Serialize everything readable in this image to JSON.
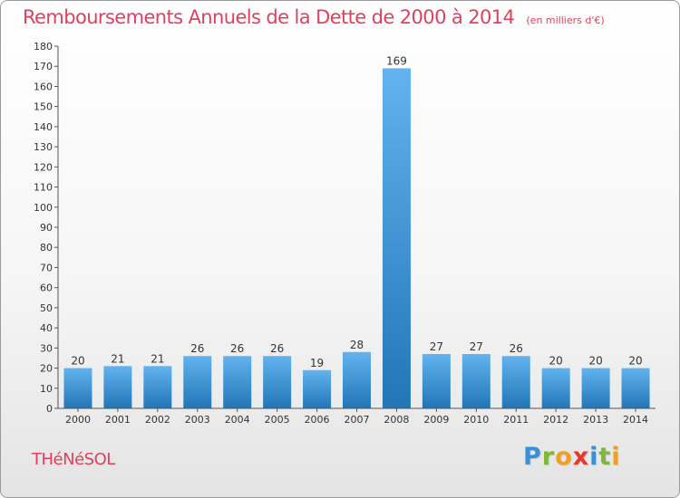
{
  "chart_data": {
    "type": "bar",
    "title": "Remboursements Annuels de la Dette de 2000 à 2014",
    "subtitle": "(en milliers d'€)",
    "xlabel": "",
    "ylabel": "",
    "categories": [
      "2000",
      "2001",
      "2002",
      "2003",
      "2004",
      "2005",
      "2006",
      "2007",
      "2008",
      "2009",
      "2010",
      "2011",
      "2012",
      "2013",
      "2014"
    ],
    "values": [
      20,
      21,
      21,
      26,
      26,
      26,
      19,
      28,
      169,
      27,
      27,
      26,
      20,
      20,
      20
    ],
    "ylim": [
      0,
      180
    ],
    "ytick_step": 10,
    "grid": false,
    "bar_color": "#3d96dd",
    "bar_color_light": "#62b3ee",
    "bar_color_dark": "#2276b6"
  },
  "footer": {
    "place": "THéNéSOL",
    "brand_letters": [
      {
        "ch": "P",
        "color": "#3a8fd6"
      },
      {
        "ch": "r",
        "color": "#7cb934"
      },
      {
        "ch": "o",
        "color": "#f0a020"
      },
      {
        "ch": "x",
        "color": "#e8372d"
      },
      {
        "ch": "i",
        "color": "#3a8fd6"
      },
      {
        "ch": "t",
        "color": "#7cb934"
      },
      {
        "ch": "i",
        "color": "#f0a020"
      }
    ]
  }
}
